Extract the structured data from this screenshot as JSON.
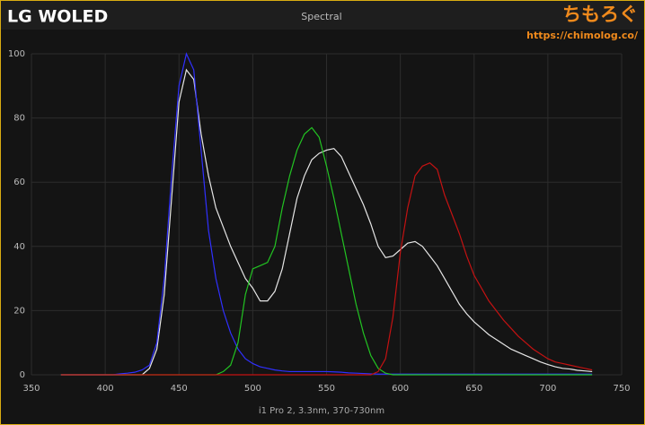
{
  "header": {
    "title": "LG WOLED",
    "logo": "ちもろぐ",
    "url": "https://chimolog.co/"
  },
  "chart_data": {
    "type": "line",
    "title": "Spectral",
    "x_label": "i1 Pro 2, 3.3nm, 370-730nm",
    "x": [
      370,
      375,
      380,
      385,
      390,
      395,
      400,
      405,
      410,
      415,
      420,
      425,
      430,
      435,
      440,
      445,
      450,
      455,
      460,
      465,
      470,
      475,
      480,
      485,
      490,
      495,
      500,
      505,
      510,
      515,
      520,
      525,
      530,
      535,
      540,
      545,
      550,
      555,
      560,
      565,
      570,
      575,
      580,
      585,
      590,
      595,
      600,
      605,
      610,
      615,
      620,
      625,
      630,
      635,
      640,
      645,
      650,
      655,
      660,
      665,
      670,
      675,
      680,
      685,
      690,
      695,
      700,
      705,
      710,
      715,
      720,
      725,
      730
    ],
    "series": [
      {
        "color": "#e6e6e6",
        "values": [
          0,
          0,
          0,
          0,
          0,
          0,
          0,
          0,
          0,
          0,
          0,
          0,
          2,
          8,
          25,
          55,
          85,
          95,
          92,
          75,
          62,
          52,
          46,
          40,
          35,
          30,
          27,
          23,
          23,
          26,
          33,
          44,
          55,
          62,
          67,
          69,
          70,
          70.5,
          68,
          63,
          58,
          53,
          47,
          40,
          36.5,
          37,
          39,
          41,
          41.5,
          40,
          37,
          34,
          30,
          26,
          22,
          19,
          16.5,
          14.5,
          12.5,
          11,
          9.5,
          8,
          7,
          6,
          5,
          4,
          3.2,
          2.5,
          2,
          1.8,
          1.4,
          1.2,
          1
        ]
      },
      {
        "color": "#3030ff",
        "values": [
          0,
          0,
          0,
          0,
          0,
          0,
          0,
          0,
          0.3,
          0.5,
          0.8,
          1.5,
          3,
          10,
          30,
          62,
          90,
          100,
          95,
          70,
          45,
          30,
          20,
          13,
          8,
          5,
          3.5,
          2.5,
          2,
          1.5,
          1.2,
          1,
          1,
          1,
          1,
          1,
          1,
          0.9,
          0.8,
          0.6,
          0.5,
          0.4,
          0.3,
          0.2,
          0.2,
          0.2,
          0.2,
          0.2,
          0.2,
          0.2,
          0.2,
          0.2,
          0.2,
          0.2,
          0.2,
          0.2,
          0.2,
          0.2,
          0.2,
          0.2,
          0.2,
          0.2,
          0.2,
          0.2,
          0.2,
          0.2,
          0.2,
          0.2,
          0.2,
          0.2,
          0.2,
          0.2,
          0.2
        ]
      },
      {
        "color": "#22c422",
        "values": [
          0,
          0,
          0,
          0,
          0,
          0,
          0,
          0,
          0,
          0,
          0,
          0,
          0,
          0,
          0,
          0,
          0,
          0,
          0,
          0,
          0,
          0,
          1,
          3,
          10,
          25,
          33,
          34,
          35,
          40,
          52,
          62,
          70,
          75,
          77,
          74,
          65,
          55,
          44,
          33,
          22,
          13,
          6,
          2,
          0.5,
          0,
          0,
          0,
          0,
          0,
          0,
          0,
          0,
          0,
          0,
          0,
          0,
          0,
          0,
          0,
          0,
          0,
          0,
          0,
          0,
          0,
          0,
          0,
          0,
          0,
          0,
          0,
          0
        ]
      },
      {
        "color": "#c41212",
        "values": [
          0,
          0,
          0,
          0,
          0,
          0,
          0,
          0,
          0,
          0,
          0,
          0,
          0,
          0,
          0,
          0,
          0,
          0,
          0,
          0,
          0,
          0,
          0,
          0,
          0,
          0,
          0,
          0,
          0,
          0,
          0,
          0,
          0,
          0,
          0,
          0,
          0,
          0,
          0,
          0,
          0,
          0,
          0,
          1,
          5,
          18,
          38,
          52,
          62,
          65,
          66,
          64,
          56,
          50,
          44,
          37,
          31,
          27,
          23,
          20,
          17,
          14.5,
          12,
          10,
          8,
          6.5,
          5,
          4,
          3.5,
          3,
          2.5,
          2,
          1.5
        ]
      }
    ],
    "xlim": [
      350,
      750
    ],
    "xticks": [
      350,
      400,
      450,
      500,
      550,
      600,
      650,
      700,
      750
    ],
    "ylim": [
      0,
      100
    ],
    "yticks": [
      0,
      20,
      40,
      60,
      80,
      100
    ],
    "grid": true
  }
}
